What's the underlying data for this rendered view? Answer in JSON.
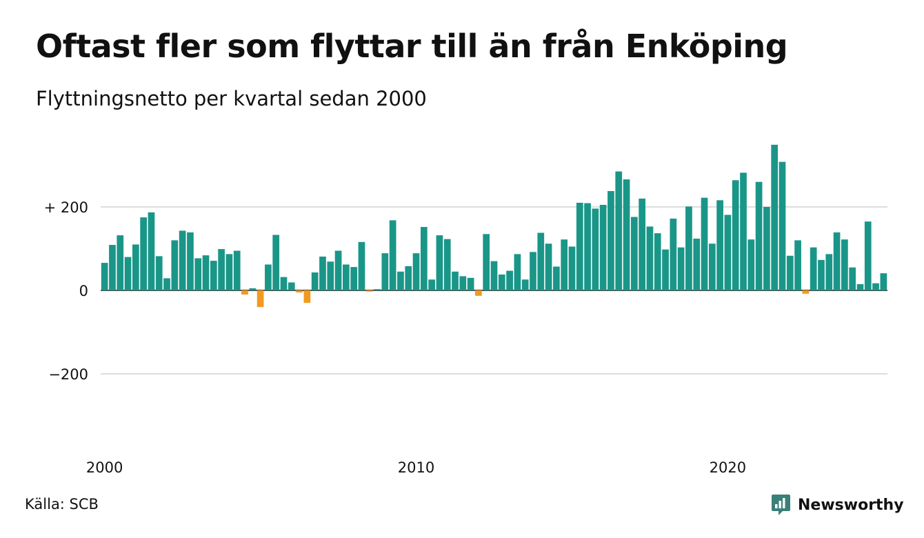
{
  "title": "Oftast fler som flyttar till än från Enköping",
  "subtitle": "Flyttningsnetto per kvartal sedan 2000",
  "source": "Källa: SCB",
  "brand": {
    "name": "Newsworthy",
    "icon": "newsworthy-logo-icon",
    "color": "#3a7f78"
  },
  "colors": {
    "positive": "#1a9688",
    "negative": "#f29a1f",
    "grid": "#dddddd",
    "zero_line": "#111111"
  },
  "chart_data": {
    "type": "bar",
    "title": "Oftast fler som flyttar till än från Enköping",
    "subtitle": "Flyttningsnetto per kvartal sedan 2000",
    "ylim": [
      -400,
      360
    ],
    "yticks": [
      {
        "value": 200,
        "label": "+ 200"
      },
      {
        "value": 0,
        "label": "0"
      },
      {
        "value": -200,
        "label": "−200"
      }
    ],
    "xticks": [
      {
        "year": 2000,
        "label": "2000"
      },
      {
        "year": 2010,
        "label": "2010"
      },
      {
        "year": 2020,
        "label": "2020"
      }
    ],
    "grid": true,
    "series": [
      {
        "categories": [
          "2000 K1",
          "2000 K2",
          "2000 K3",
          "2000 K4",
          "2001 K1",
          "2001 K2",
          "2001 K3",
          "2001 K4",
          "2002 K1",
          "2002 K2",
          "2002 K3",
          "2002 K4",
          "2003 K1",
          "2003 K2",
          "2003 K3",
          "2003 K4",
          "2004 K1",
          "2004 K2",
          "2004 K3",
          "2004 K4",
          "2005 K1",
          "2005 K2",
          "2005 K3",
          "2005 K4",
          "2006 K1",
          "2006 K2",
          "2006 K3",
          "2006 K4",
          "2007 K1",
          "2007 K2",
          "2007 K3",
          "2007 K4",
          "2008 K1",
          "2008 K2",
          "2008 K3",
          "2008 K4",
          "2009 K1",
          "2009 K2",
          "2009 K3",
          "2009 K4",
          "2010 K1",
          "2010 K2",
          "2010 K3",
          "2010 K4",
          "2011 K1",
          "2011 K2",
          "2011 K3",
          "2011 K4",
          "2012 K1",
          "2012 K2",
          "2012 K3",
          "2012 K4",
          "2013 K1",
          "2013 K2",
          "2013 K3",
          "2013 K4",
          "2014 K1",
          "2014 K2",
          "2014 K3",
          "2014 K4",
          "2015 K1",
          "2015 K2",
          "2015 K3",
          "2015 K4",
          "2016 K1",
          "2016 K2",
          "2016 K3",
          "2016 K4",
          "2017 K1",
          "2017 K2",
          "2017 K3",
          "2017 K4",
          "2018 K1",
          "2018 K2",
          "2018 K3",
          "2018 K4",
          "2019 K1",
          "2019 K2",
          "2019 K3",
          "2019 K4",
          "2020 K1",
          "2020 K2",
          "2020 K3",
          "2020 K4",
          "2021 K1",
          "2021 K2",
          "2021 K3",
          "2021 K4",
          "2022 K1",
          "2022 K2",
          "2022 K3",
          "2022 K4",
          "2023 K1",
          "2023 K2",
          "2023 K3",
          "2023 K4",
          "2024 K1",
          "2024 K2",
          "2024 K3",
          "2024 K4",
          "2025 K1"
        ],
        "values": [
          66,
          109,
          132,
          80,
          110,
          175,
          187,
          82,
          29,
          120,
          143,
          139,
          77,
          84,
          71,
          99,
          87,
          95,
          -10,
          5,
          -40,
          62,
          133,
          32,
          19,
          -5,
          -30,
          43,
          81,
          69,
          95,
          62,
          56,
          116,
          -3,
          3,
          89,
          168,
          45,
          58,
          89,
          152,
          26,
          132,
          123,
          45,
          34,
          30,
          -13,
          135,
          70,
          38,
          47,
          87,
          26,
          92,
          138,
          112,
          57,
          122,
          105,
          210,
          209,
          196,
          205,
          238,
          285,
          266,
          176,
          220,
          153,
          137,
          98,
          172,
          103,
          201,
          124,
          222,
          112,
          216,
          181,
          264,
          282,
          122,
          260,
          200,
          349,
          308,
          83,
          120,
          -8,
          103,
          73,
          87,
          139,
          122,
          55,
          15,
          165,
          17,
          41
        ]
      }
    ]
  }
}
